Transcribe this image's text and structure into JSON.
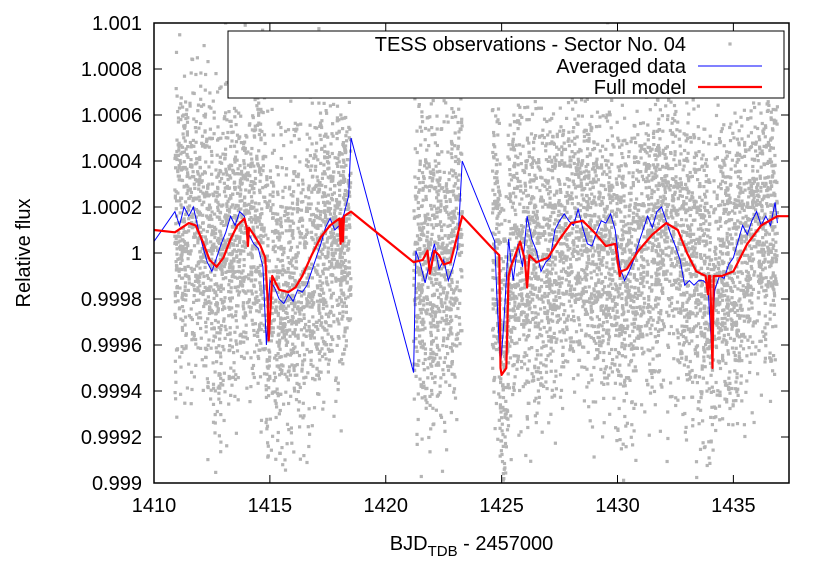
{
  "chart_data": {
    "type": "scatter",
    "xlabel": {
      "main": "BJD",
      "sub": "TDB",
      "rest": " - 2457000"
    },
    "ylabel": "Relative flux",
    "xlim": [
      1410,
      1437.4
    ],
    "ylim": [
      0.999,
      1.001
    ],
    "xticks": [
      1410,
      1415,
      1420,
      1425,
      1430,
      1435
    ],
    "yticks": [
      0.999,
      0.9992,
      0.9994,
      0.9996,
      0.9998,
      1,
      1.0002,
      1.0004,
      1.0006,
      1.0008,
      1.001
    ],
    "ytick_labels": [
      "0.999",
      "0.9992",
      "0.9994",
      "0.9996",
      "0.9998",
      "1",
      "1.0002",
      "1.0004",
      "1.0006",
      "1.0008",
      "1.001"
    ],
    "legend_position": "top-right",
    "colors": {
      "observations": "#b4b4b4",
      "averaged": "#0000ff",
      "model": "#ff0000"
    },
    "series": [
      {
        "name": "TESS observations - Sector No. 04",
        "kind": "points",
        "observing_windows": [
          [
            1410.9,
            1418.5
          ],
          [
            1421.2,
            1423.3
          ],
          [
            1424.6,
            1436.9
          ]
        ]
      },
      {
        "name": "Averaged data",
        "kind": "line",
        "x": [
          1410.0,
          1410.9,
          1411.1,
          1411.3,
          1411.5,
          1411.7,
          1411.9,
          1412.1,
          1412.3,
          1412.5,
          1412.7,
          1412.9,
          1413.1,
          1413.3,
          1413.5,
          1413.7,
          1413.9,
          1414.1,
          1414.3,
          1414.5,
          1414.7,
          1414.85,
          1415.0,
          1415.2,
          1415.4,
          1415.6,
          1415.8,
          1416.0,
          1416.2,
          1416.4,
          1416.6,
          1416.8,
          1417.0,
          1417.2,
          1417.4,
          1417.6,
          1417.8,
          1418.0,
          1418.2,
          1418.4,
          1418.5,
          1421.2,
          1421.3,
          1421.5,
          1421.7,
          1421.9,
          1422.1,
          1422.3,
          1422.5,
          1422.7,
          1422.9,
          1423.1,
          1423.3,
          1424.7,
          1424.8,
          1424.95,
          1425.1,
          1425.3,
          1425.5,
          1425.7,
          1425.9,
          1426.1,
          1426.3,
          1426.5,
          1426.7,
          1426.9,
          1427.1,
          1427.3,
          1427.5,
          1427.7,
          1427.9,
          1428.1,
          1428.3,
          1428.5,
          1428.7,
          1428.9,
          1429.1,
          1429.3,
          1429.5,
          1429.7,
          1429.9,
          1430.1,
          1430.3,
          1430.5,
          1430.7,
          1430.9,
          1431.1,
          1431.3,
          1431.5,
          1431.7,
          1431.9,
          1432.1,
          1432.3,
          1432.5,
          1432.7,
          1432.9,
          1433.1,
          1433.3,
          1433.5,
          1433.7,
          1433.9,
          1434.05,
          1434.2,
          1434.4,
          1434.6,
          1434.8,
          1435.0,
          1435.2,
          1435.4,
          1435.6,
          1435.8,
          1436.0,
          1436.2,
          1436.4,
          1436.6,
          1436.8,
          1436.9
        ],
        "y": [
          1.00005,
          1.00018,
          1.00012,
          1.0002,
          1.00016,
          1.0002,
          1.00011,
          1.00003,
          0.99996,
          0.99992,
          0.99998,
          1.00004,
          1.00009,
          1.00016,
          1.00012,
          1.00018,
          1.00016,
          1.00008,
          1.00004,
          1.00002,
          0.99994,
          0.9996,
          0.99988,
          0.99985,
          0.9998,
          0.99978,
          0.99982,
          0.99979,
          0.99984,
          0.99983,
          0.99986,
          0.99992,
          0.99998,
          1.00004,
          1.00011,
          1.00015,
          1.0001,
          1.00012,
          1.00017,
          1.00025,
          1.0005,
          0.99948,
          1.00001,
          0.99995,
          0.99987,
          0.99996,
          1.00004,
          0.99993,
          0.99997,
          0.99988,
          0.99994,
          1.00002,
          1.0004,
          1.00005,
          0.9998,
          0.9995,
          0.9997,
          1.00006,
          0.99988,
          1.00004,
          0.99994,
          1.00016,
          1.00006,
          1.00001,
          0.99992,
          0.99996,
          0.99998,
          1.0001,
          1.00014,
          1.00017,
          1.00014,
          1.00012,
          1.00019,
          1.00011,
          1.00004,
          1.00003,
          1.00009,
          1.00014,
          1.00013,
          1.00017,
          1.0001,
          0.99994,
          0.99988,
          0.99992,
          0.99997,
          1.00004,
          1.0001,
          1.00016,
          1.00011,
          1.00018,
          1.0002,
          1.00014,
          1.00008,
          1.00003,
          0.99997,
          0.99986,
          0.99988,
          0.99986,
          0.99988,
          0.99988,
          0.99986,
          0.9996,
          0.99984,
          0.9999,
          0.99989,
          0.99995,
          0.99998,
          1.00005,
          1.00012,
          1.00008,
          1.00014,
          1.00018,
          1.00012,
          1.00016,
          1.00012,
          1.00022,
          1.00013
        ]
      },
      {
        "name": "Full model",
        "kind": "line",
        "x": [
          1410.0,
          1410.9,
          1411.2,
          1411.5,
          1411.8,
          1412.1,
          1412.4,
          1412.7,
          1413.0,
          1413.3,
          1413.6,
          1413.9,
          1414.0,
          1414.05,
          1414.1,
          1414.3,
          1414.6,
          1414.8,
          1414.9,
          1414.95,
          1415.05,
          1415.1,
          1415.4,
          1415.8,
          1416.1,
          1416.4,
          1416.8,
          1417.2,
          1417.6,
          1418.0,
          1418.05,
          1418.1,
          1418.15,
          1418.2,
          1418.5,
          1421.2,
          1421.6,
          1421.8,
          1421.9,
          1422.1,
          1422.3,
          1422.5,
          1422.8,
          1423.3,
          1424.6,
          1424.9,
          1424.95,
          1425.0,
          1425.2,
          1425.3,
          1425.4,
          1425.8,
          1426.0,
          1426.1,
          1426.2,
          1426.5,
          1427.0,
          1427.5,
          1428.0,
          1428.5,
          1429.0,
          1429.5,
          1429.9,
          1430.1,
          1430.15,
          1430.4,
          1430.9,
          1431.5,
          1432.1,
          1432.6,
          1433.0,
          1433.4,
          1433.8,
          1433.9,
          1433.95,
          1434.0,
          1434.1,
          1434.15,
          1434.2,
          1434.3,
          1434.5,
          1435.0,
          1435.6,
          1436.2,
          1436.9,
          1437.4
        ],
        "y": [
          1.0001,
          1.00009,
          1.00011,
          1.00013,
          1.00012,
          1.00005,
          0.99997,
          0.99994,
          0.99998,
          1.00006,
          1.00012,
          1.00015,
          1.00011,
          1.00003,
          1.00011,
          1.00008,
          1.00003,
          0.99998,
          0.9998,
          0.99962,
          0.9998,
          0.9999,
          0.99984,
          0.99983,
          0.99985,
          0.9999,
          0.99999,
          1.00007,
          1.00012,
          1.00015,
          1.00004,
          1.00015,
          1.00005,
          1.00016,
          1.00018,
          0.99996,
          0.99997,
          1.00001,
          0.99991,
          1.00001,
          0.99999,
          0.99995,
          0.99996,
          1.00016,
          1.00002,
          0.99999,
          0.9995,
          0.99947,
          0.9995,
          0.9999,
          0.99994,
          1.00005,
          0.99997,
          0.99985,
          0.99999,
          0.99996,
          0.99998,
          1.00006,
          1.00013,
          1.00014,
          1.00009,
          1.00003,
          1.00004,
          0.9999,
          0.99992,
          0.99993,
          1.00001,
          1.00008,
          1.00013,
          1.0001,
          1.0,
          0.99992,
          0.9999,
          0.99982,
          0.9999,
          0.9999,
          0.9995,
          0.9999,
          0.9999,
          0.9999,
          0.9999,
          0.99992,
          1.00004,
          1.00012,
          1.00016,
          1.00016
        ]
      }
    ]
  }
}
